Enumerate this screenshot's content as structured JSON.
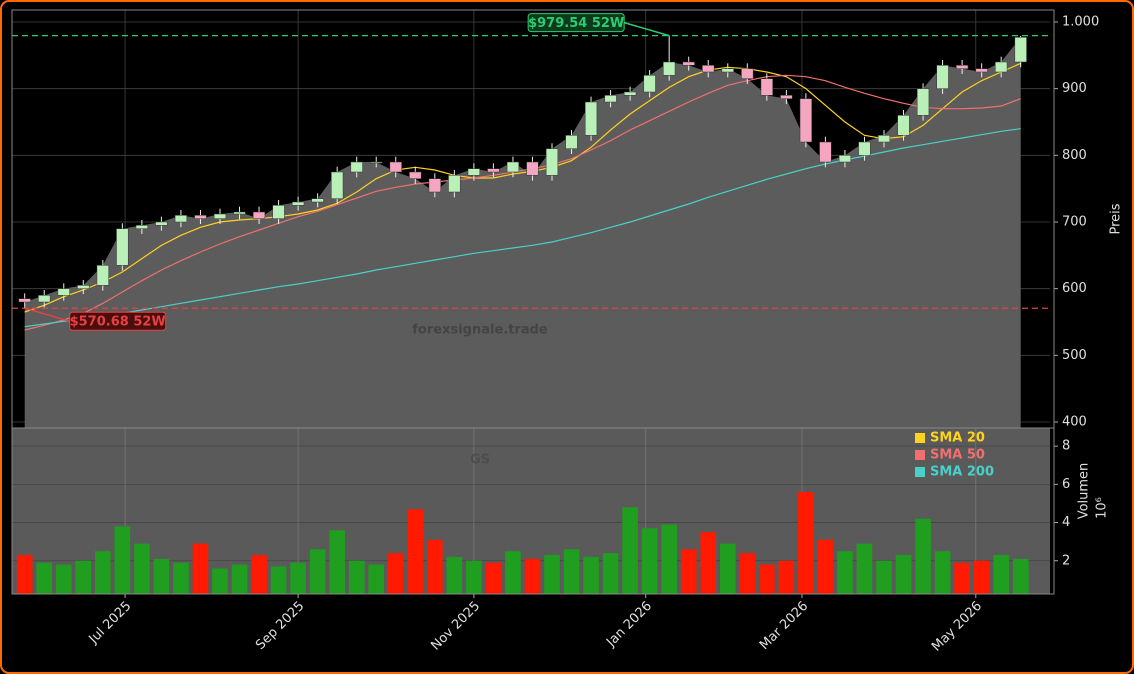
{
  "chart_data": [
    {
      "type": "candlestick",
      "y_label": "Preis",
      "watermark": "forexsignale.trade",
      "open": [
        585,
        580,
        590,
        600,
        605,
        635,
        690,
        695,
        700,
        710,
        705,
        712,
        715,
        705,
        725,
        730,
        735,
        775,
        790,
        790,
        775,
        765,
        745,
        770,
        780,
        775,
        790,
        770,
        810,
        830,
        880,
        890,
        895,
        920,
        940,
        935,
        925,
        930,
        915,
        890,
        885,
        820,
        790,
        800,
        820,
        830,
        860,
        900,
        935,
        930,
        925,
        940
      ],
      "high": [
        593,
        598,
        608,
        613,
        643,
        698,
        703,
        708,
        718,
        718,
        720,
        723,
        723,
        733,
        738,
        743,
        783,
        798,
        798,
        798,
        783,
        773,
        778,
        788,
        788,
        798,
        798,
        818,
        838,
        888,
        898,
        903,
        928,
        979.54,
        948,
        943,
        938,
        938,
        923,
        898,
        893,
        828,
        808,
        828,
        838,
        868,
        908,
        943,
        943,
        938,
        948,
        979
      ],
      "low": [
        570.68,
        572,
        582,
        592,
        597,
        627,
        682,
        687,
        692,
        697,
        697,
        704,
        697,
        697,
        717,
        722,
        727,
        767,
        782,
        767,
        757,
        737,
        737,
        762,
        767,
        767,
        762,
        762,
        802,
        822,
        872,
        882,
        887,
        912,
        927,
        917,
        917,
        907,
        882,
        877,
        812,
        782,
        782,
        792,
        812,
        822,
        852,
        892,
        922,
        917,
        917,
        932
      ],
      "close": [
        580,
        590,
        600,
        605,
        635,
        690,
        695,
        700,
        710,
        705,
        712,
        715,
        705,
        725,
        730,
        735,
        775,
        790,
        790,
        775,
        765,
        745,
        770,
        780,
        775,
        790,
        770,
        810,
        830,
        880,
        890,
        895,
        920,
        940,
        935,
        925,
        930,
        915,
        890,
        885,
        820,
        790,
        800,
        820,
        830,
        860,
        900,
        935,
        930,
        925,
        940,
        977
      ],
      "up_color": "#b8f0b8",
      "down_color": "#f4a6c0",
      "area_color": "#5c5c5c",
      "series": [
        {
          "name": "SMA 20",
          "color": "#ffd21f",
          "values": [
            565,
            575,
            588,
            598,
            610,
            625,
            645,
            665,
            680,
            692,
            700,
            703,
            705,
            708,
            712,
            718,
            728,
            745,
            765,
            778,
            782,
            778,
            770,
            766,
            766,
            772,
            776,
            782,
            792,
            812,
            838,
            862,
            882,
            902,
            918,
            928,
            932,
            930,
            925,
            918,
            900,
            875,
            850,
            830,
            825,
            828,
            845,
            870,
            895,
            912,
            925,
            938
          ]
        },
        {
          "name": "SMA 50",
          "color": "#f07070",
          "values": [
            538,
            545,
            553,
            563,
            578,
            595,
            612,
            628,
            642,
            655,
            667,
            678,
            688,
            698,
            708,
            716,
            726,
            736,
            746,
            752,
            757,
            760,
            763,
            766,
            770,
            775,
            780,
            786,
            795,
            808,
            822,
            838,
            852,
            866,
            880,
            893,
            905,
            912,
            918,
            920,
            918,
            912,
            902,
            893,
            885,
            878,
            872,
            870,
            870,
            871,
            874,
            885
          ]
        },
        {
          "name": "SMA 200",
          "color": "#48d1c8",
          "values": [
            543,
            547,
            551,
            555,
            559,
            563,
            568,
            573,
            578,
            583,
            588,
            593,
            598,
            603,
            607,
            612,
            617,
            622,
            628,
            633,
            638,
            643,
            648,
            653,
            657,
            661,
            665,
            670,
            677,
            684,
            692,
            700,
            709,
            718,
            727,
            737,
            746,
            755,
            764,
            772,
            780,
            787,
            793,
            799,
            805,
            811,
            816,
            821,
            826,
            831,
            836,
            840
          ]
        }
      ],
      "ylim": [
        391,
        1018
      ],
      "yticks": [
        {
          "value": 1000,
          "label": "1.000"
        },
        900,
        800,
        700,
        600,
        500,
        400
      ],
      "xlim": [
        -0.65,
        52.5
      ],
      "grid": true,
      "annotations": [
        {
          "text": "$979.54 52W",
          "value": 979.54,
          "color": "#2ecc71"
        },
        {
          "text": "$570.68 52W",
          "value": 570.68,
          "color": "#e84040"
        }
      ]
    },
    {
      "type": "bar",
      "y_label": "Volumen",
      "exponent": "10⁶",
      "watermark": "GS",
      "values": [
        2.3,
        1.9,
        1.8,
        2.0,
        2.5,
        3.8,
        2.9,
        2.1,
        1.9,
        2.9,
        1.6,
        1.8,
        2.3,
        1.7,
        1.9,
        2.6,
        3.6,
        2.0,
        1.8,
        2.4,
        4.7,
        3.1,
        2.2,
        2.0,
        1.9,
        2.5,
        2.1,
        2.3,
        2.6,
        2.2,
        2.4,
        4.8,
        3.7,
        3.9,
        2.6,
        3.5,
        2.9,
        2.4,
        1.8,
        2.0,
        5.6,
        3.1,
        2.5,
        2.9,
        2.0,
        2.3,
        4.2,
        2.5,
        1.9,
        2.0,
        2.3,
        2.1
      ],
      "up_color": "#1f9e1f",
      "down_color": "#ff1a00",
      "ylim": [
        0.26,
        8.95
      ],
      "yticks": [
        2,
        4,
        6,
        8
      ],
      "xlim": [
        -0.65,
        52.5
      ],
      "xticks": [
        {
          "value": 5.14,
          "label": "Jul 2025"
        },
        {
          "value": 14.0,
          "label": "Sep 2025"
        },
        {
          "value": 23.0,
          "label": "Nov 2025"
        },
        {
          "value": 31.8,
          "label": "Jan 2026"
        },
        {
          "value": 39.8,
          "label": "Mar 2026"
        },
        {
          "value": 48.7,
          "label": "May 2026"
        }
      ],
      "grid": true,
      "legend": "upper right"
    }
  ]
}
